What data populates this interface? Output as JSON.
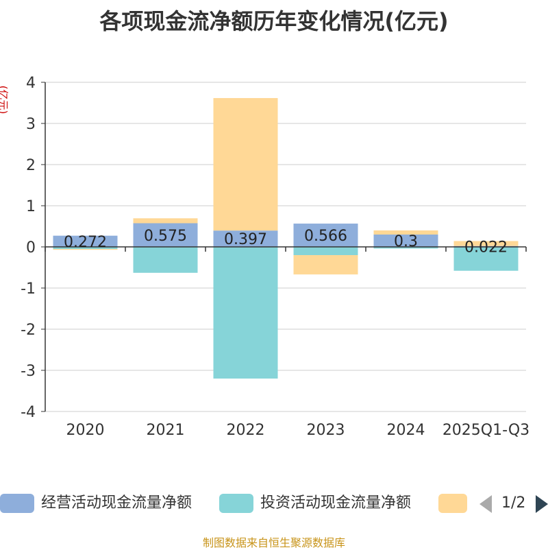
{
  "chart_data": {
    "type": "bar",
    "stacked": true,
    "title": "各项现金流净额历年变化情况(亿元)",
    "ylabel": "(亿元)",
    "xlabel": "",
    "ylim": [
      -4,
      4
    ],
    "yticks": [
      4,
      3,
      2,
      1,
      0,
      -1,
      -2,
      -3,
      -4
    ],
    "categories": [
      "2020",
      "2021",
      "2022",
      "2023",
      "2024",
      "2025Q1-Q3"
    ],
    "series": [
      {
        "name": "经营活动现金流量净额",
        "color": "#8eaedb",
        "values": [
          0.272,
          0.575,
          0.397,
          0.566,
          0.3,
          0.022
        ],
        "labels": [
          "0.272",
          "0.575",
          "0.397",
          "0.566",
          "0.3",
          "0.022"
        ]
      },
      {
        "name": "投资活动现金流量净额",
        "color": "#86d4d8",
        "values": [
          -0.05,
          -0.63,
          -3.2,
          -0.2,
          -0.04,
          -0.58
        ]
      },
      {
        "name": "",
        "color": "#ffd896",
        "values": [
          -0.02,
          0.12,
          3.22,
          -0.47,
          0.1,
          0.12
        ]
      }
    ]
  },
  "legend": {
    "items": [
      {
        "label": "经营活动现金流量净额",
        "color": "#8eaedb"
      },
      {
        "label": "投资活动现金流量净额",
        "color": "#86d4d8"
      },
      {
        "label": "",
        "color": "#ffd896"
      }
    ],
    "page": "1/2"
  },
  "source": "制图数据来自恒生聚源数据库"
}
